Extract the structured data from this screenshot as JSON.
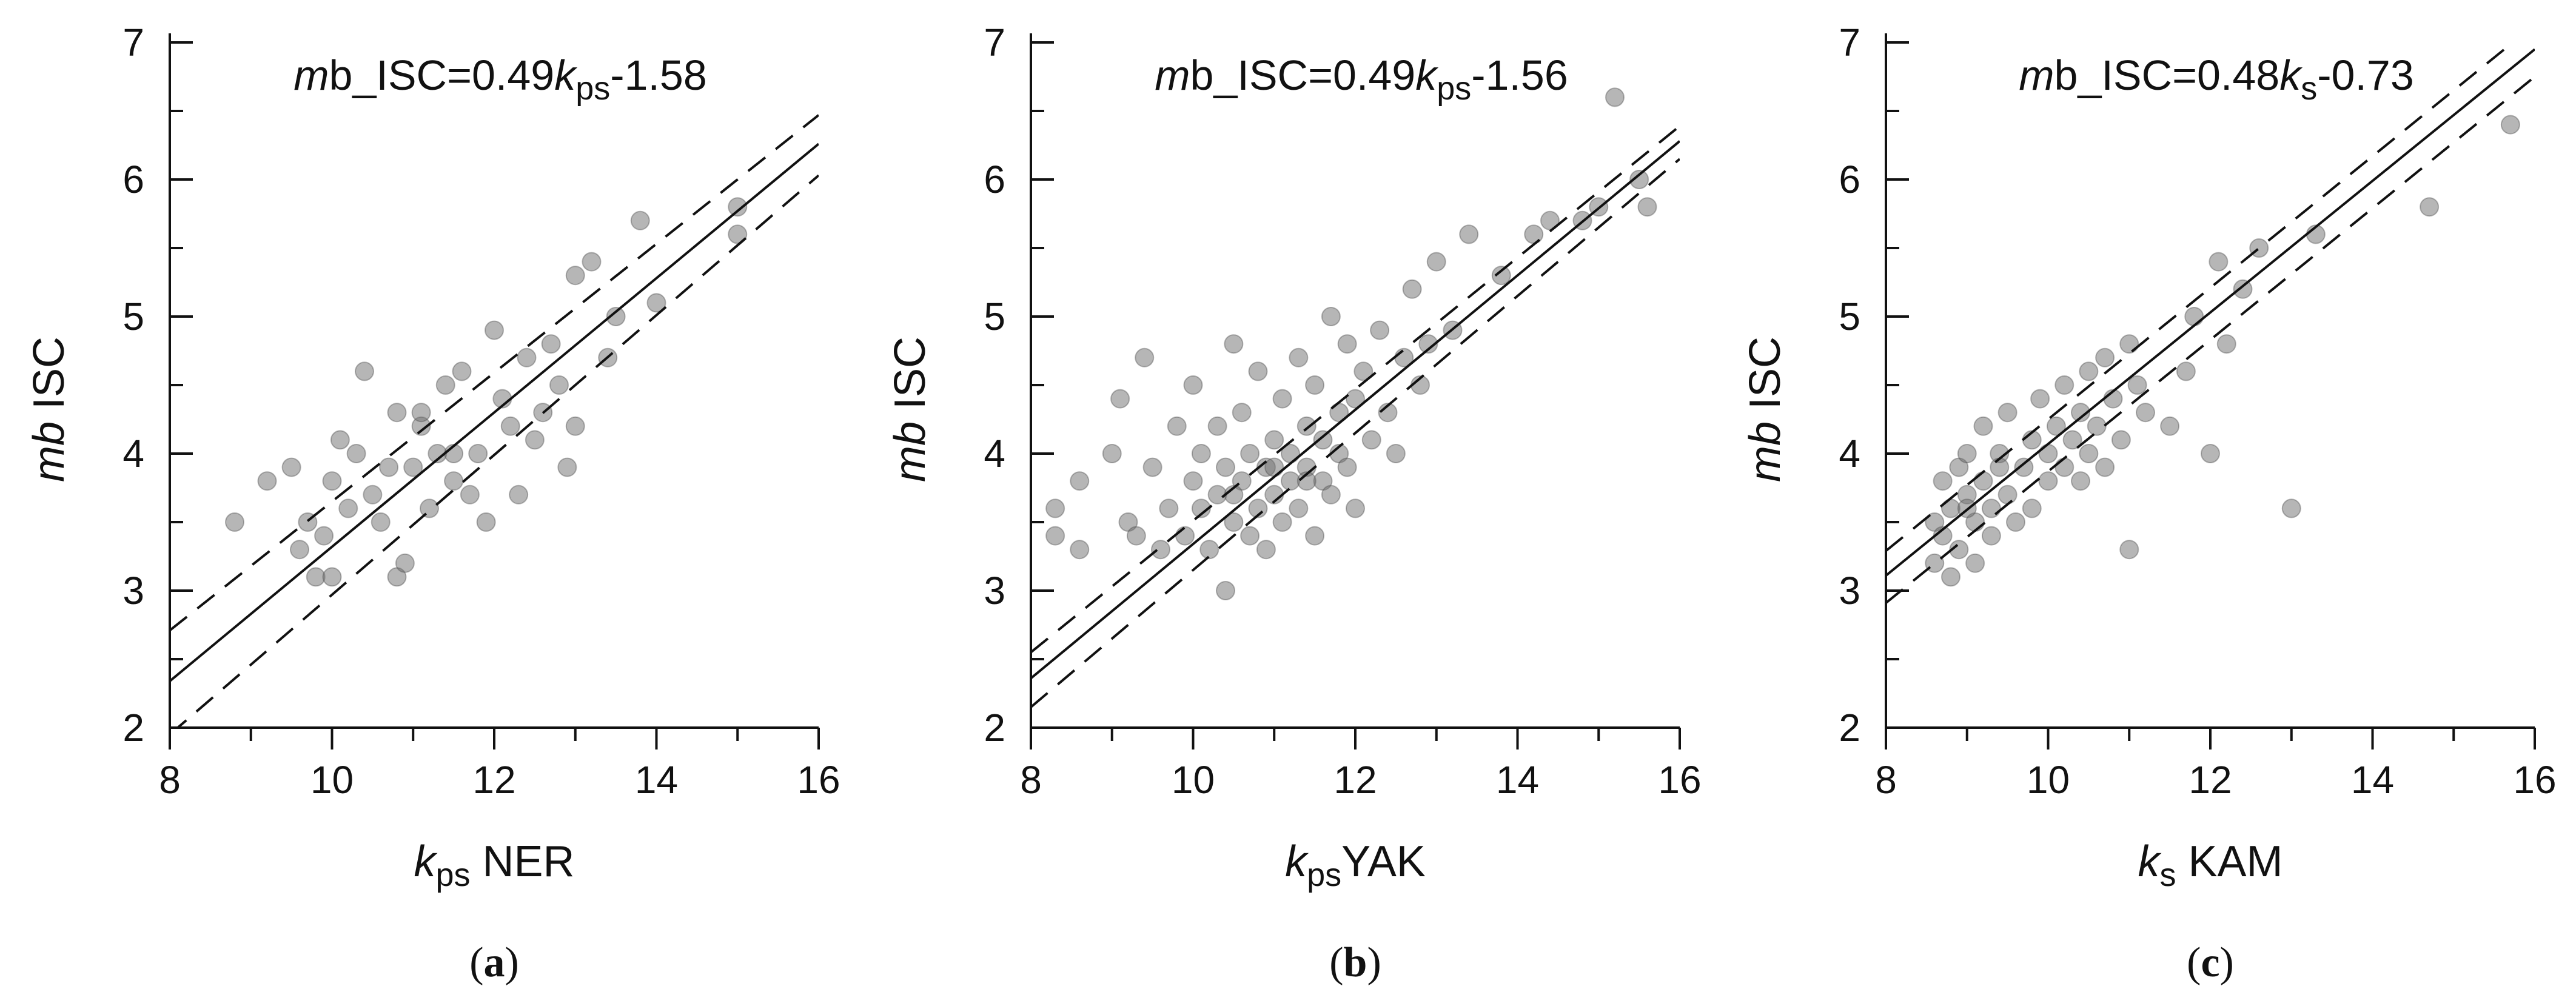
{
  "chart_data": [
    {
      "type": "scatter",
      "panel_label": {
        "open": "(",
        "letter": "a",
        "close": ")"
      },
      "equation": {
        "prefix_italic": "m",
        "prefix": "b_ISC=0.49",
        "var": "k",
        "var_sub": "ps",
        "suffix": "-1.58"
      },
      "xlabel": {
        "var": "k",
        "sub": "ps",
        "text": " NER"
      },
      "ylabel": {
        "italic": "mb",
        "text": " ISC"
      },
      "xlim": [
        8,
        16
      ],
      "ylim": [
        2,
        7
      ],
      "xticks": [
        "8",
        "10",
        "12",
        "14",
        "16"
      ],
      "yticks": [
        "2",
        "3",
        "4",
        "5",
        "6",
        "7"
      ],
      "fit": {
        "slope": 0.49,
        "intercept": -1.58
      },
      "bounds": [
        {
          "slope": 0.47,
          "intercept": -1.05
        },
        {
          "slope": 0.51,
          "intercept": -2.13
        }
      ],
      "points": [
        [
          8.8,
          3.5
        ],
        [
          9.2,
          3.8
        ],
        [
          9.5,
          3.9
        ],
        [
          9.6,
          3.3
        ],
        [
          9.7,
          3.5
        ],
        [
          9.8,
          3.1
        ],
        [
          9.9,
          3.4
        ],
        [
          10.0,
          3.1
        ],
        [
          10.0,
          3.8
        ],
        [
          10.1,
          4.1
        ],
        [
          10.2,
          3.6
        ],
        [
          10.3,
          4.0
        ],
        [
          10.4,
          4.6
        ],
        [
          10.5,
          3.7
        ],
        [
          10.6,
          3.5
        ],
        [
          10.7,
          3.9
        ],
        [
          10.8,
          4.3
        ],
        [
          10.8,
          3.1
        ],
        [
          10.9,
          3.2
        ],
        [
          11.0,
          3.9
        ],
        [
          11.1,
          4.2
        ],
        [
          11.2,
          3.6
        ],
        [
          11.3,
          4.0
        ],
        [
          11.4,
          4.5
        ],
        [
          11.5,
          3.8
        ],
        [
          11.6,
          4.6
        ],
        [
          11.7,
          3.7
        ],
        [
          11.8,
          4.0
        ],
        [
          11.9,
          3.5
        ],
        [
          12.0,
          4.9
        ],
        [
          12.1,
          4.4
        ],
        [
          12.2,
          4.2
        ],
        [
          12.3,
          3.7
        ],
        [
          12.4,
          4.7
        ],
        [
          12.5,
          4.1
        ],
        [
          12.6,
          4.3
        ],
        [
          12.7,
          4.8
        ],
        [
          12.8,
          4.5
        ],
        [
          12.9,
          3.9
        ],
        [
          13.0,
          5.3
        ],
        [
          13.0,
          4.2
        ],
        [
          13.2,
          5.4
        ],
        [
          13.4,
          4.7
        ],
        [
          13.5,
          5.0
        ],
        [
          13.8,
          5.7
        ],
        [
          14.0,
          5.1
        ],
        [
          15.0,
          5.8
        ],
        [
          15.0,
          5.6
        ],
        [
          11.1,
          4.3
        ],
        [
          11.5,
          4.0
        ]
      ]
    },
    {
      "type": "scatter",
      "panel_label": {
        "open": "(",
        "letter": "b",
        "close": ")"
      },
      "equation": {
        "prefix_italic": "m",
        "prefix": "b_ISC=0.49",
        "var": "k",
        "var_sub": "ps",
        "suffix": "-1.56"
      },
      "xlabel": {
        "var": "k",
        "sub": "ps",
        "text": "YAK"
      },
      "ylabel": {
        "italic": "mb",
        "text": " ISC"
      },
      "xlim": [
        8,
        16
      ],
      "ylim": [
        2,
        7
      ],
      "xticks": [
        "8",
        "10",
        "12",
        "14",
        "16"
      ],
      "yticks": [
        "2",
        "3",
        "4",
        "5",
        "6",
        "7"
      ],
      "fit": {
        "slope": 0.49,
        "intercept": -1.56
      },
      "bounds": [
        {
          "slope": 0.48,
          "intercept": -1.29
        },
        {
          "slope": 0.5,
          "intercept": -1.85
        }
      ],
      "points": [
        [
          8.3,
          3.6
        ],
        [
          8.3,
          3.4
        ],
        [
          8.6,
          3.3
        ],
        [
          8.6,
          3.8
        ],
        [
          9.0,
          4.0
        ],
        [
          9.1,
          4.4
        ],
        [
          9.2,
          3.5
        ],
        [
          9.3,
          3.4
        ],
        [
          9.4,
          4.7
        ],
        [
          9.5,
          3.9
        ],
        [
          9.6,
          3.3
        ],
        [
          9.7,
          3.6
        ],
        [
          9.8,
          4.2
        ],
        [
          9.9,
          3.4
        ],
        [
          10.0,
          3.8
        ],
        [
          10.0,
          4.5
        ],
        [
          10.1,
          3.6
        ],
        [
          10.1,
          4.0
        ],
        [
          10.2,
          3.3
        ],
        [
          10.3,
          4.2
        ],
        [
          10.3,
          3.7
        ],
        [
          10.4,
          3.0
        ],
        [
          10.4,
          3.9
        ],
        [
          10.5,
          4.8
        ],
        [
          10.5,
          3.5
        ],
        [
          10.6,
          4.3
        ],
        [
          10.6,
          3.8
        ],
        [
          10.7,
          3.4
        ],
        [
          10.7,
          4.0
        ],
        [
          10.8,
          3.6
        ],
        [
          10.8,
          4.6
        ],
        [
          10.9,
          3.9
        ],
        [
          10.9,
          3.3
        ],
        [
          11.0,
          4.1
        ],
        [
          11.0,
          3.7
        ],
        [
          11.1,
          4.4
        ],
        [
          11.1,
          3.5
        ],
        [
          11.2,
          4.0
        ],
        [
          11.2,
          3.8
        ],
        [
          11.3,
          4.7
        ],
        [
          11.3,
          3.6
        ],
        [
          11.4,
          4.2
        ],
        [
          11.4,
          3.9
        ],
        [
          11.5,
          4.5
        ],
        [
          11.5,
          3.4
        ],
        [
          11.6,
          4.1
        ],
        [
          11.6,
          3.8
        ],
        [
          11.7,
          5.0
        ],
        [
          11.7,
          3.7
        ],
        [
          11.8,
          4.3
        ],
        [
          11.8,
          4.0
        ],
        [
          11.9,
          4.8
        ],
        [
          11.9,
          3.9
        ],
        [
          12.0,
          4.4
        ],
        [
          12.0,
          3.6
        ],
        [
          12.1,
          4.6
        ],
        [
          12.2,
          4.1
        ],
        [
          12.3,
          4.9
        ],
        [
          12.4,
          4.3
        ],
        [
          12.5,
          4.0
        ],
        [
          12.6,
          4.7
        ],
        [
          12.7,
          5.2
        ],
        [
          12.8,
          4.5
        ],
        [
          12.9,
          4.8
        ],
        [
          13.0,
          5.4
        ],
        [
          13.2,
          4.9
        ],
        [
          13.4,
          5.6
        ],
        [
          13.8,
          5.3
        ],
        [
          14.2,
          5.6
        ],
        [
          14.4,
          5.7
        ],
        [
          14.8,
          5.7
        ],
        [
          15.0,
          5.8
        ],
        [
          15.2,
          6.6
        ],
        [
          15.5,
          6.0
        ],
        [
          15.6,
          5.8
        ],
        [
          11.0,
          3.9
        ],
        [
          10.5,
          3.7
        ],
        [
          11.4,
          3.8
        ]
      ]
    },
    {
      "type": "scatter",
      "panel_label": {
        "open": "(",
        "letter": "c",
        "close": ")"
      },
      "equation": {
        "prefix_italic": "m",
        "prefix": "b_ISC=0.48",
        "var": "k",
        "var_sub": "s",
        "suffix": "-0.73"
      },
      "xlabel": {
        "var": "k",
        "sub": "s",
        "text": " KAM"
      },
      "ylabel": {
        "italic": "mb",
        "text": " ISC"
      },
      "xlim": [
        8,
        16
      ],
      "ylim": [
        2,
        7
      ],
      "xticks": [
        "8",
        "10",
        "12",
        "14",
        "16"
      ],
      "yticks": [
        "2",
        "3",
        "4",
        "5",
        "6",
        "7"
      ],
      "fit": {
        "slope": 0.48,
        "intercept": -0.73
      },
      "bounds": [
        {
          "slope": 0.48,
          "intercept": -0.55
        },
        {
          "slope": 0.48,
          "intercept": -0.93
        }
      ],
      "points": [
        [
          8.6,
          3.5
        ],
        [
          8.6,
          3.2
        ],
        [
          8.7,
          3.8
        ],
        [
          8.7,
          3.4
        ],
        [
          8.8,
          3.6
        ],
        [
          8.8,
          3.1
        ],
        [
          8.9,
          3.9
        ],
        [
          8.9,
          3.3
        ],
        [
          9.0,
          3.7
        ],
        [
          9.0,
          4.0
        ],
        [
          9.1,
          3.5
        ],
        [
          9.1,
          3.2
        ],
        [
          9.2,
          3.8
        ],
        [
          9.2,
          4.2
        ],
        [
          9.3,
          3.6
        ],
        [
          9.3,
          3.4
        ],
        [
          9.4,
          4.0
        ],
        [
          9.5,
          3.7
        ],
        [
          9.5,
          4.3
        ],
        [
          9.6,
          3.5
        ],
        [
          9.7,
          3.9
        ],
        [
          9.8,
          4.1
        ],
        [
          9.8,
          3.6
        ],
        [
          9.9,
          4.4
        ],
        [
          10.0,
          3.8
        ],
        [
          10.0,
          4.0
        ],
        [
          10.1,
          4.2
        ],
        [
          10.2,
          3.9
        ],
        [
          10.2,
          4.5
        ],
        [
          10.3,
          4.1
        ],
        [
          10.4,
          4.3
        ],
        [
          10.4,
          3.8
        ],
        [
          10.5,
          4.6
        ],
        [
          10.5,
          4.0
        ],
        [
          10.6,
          4.2
        ],
        [
          10.7,
          4.7
        ],
        [
          10.7,
          3.9
        ],
        [
          10.8,
          4.4
        ],
        [
          10.9,
          4.1
        ],
        [
          11.0,
          4.8
        ],
        [
          11.0,
          3.3
        ],
        [
          11.1,
          4.5
        ],
        [
          11.2,
          4.3
        ],
        [
          11.5,
          4.2
        ],
        [
          11.7,
          4.6
        ],
        [
          11.8,
          5.0
        ],
        [
          12.0,
          4.0
        ],
        [
          12.1,
          5.4
        ],
        [
          12.2,
          4.8
        ],
        [
          12.4,
          5.2
        ],
        [
          12.6,
          5.5
        ],
        [
          13.0,
          3.6
        ],
        [
          13.3,
          5.6
        ],
        [
          14.7,
          5.8
        ],
        [
          15.7,
          6.4
        ],
        [
          9.0,
          3.6
        ],
        [
          9.4,
          3.9
        ]
      ]
    }
  ]
}
